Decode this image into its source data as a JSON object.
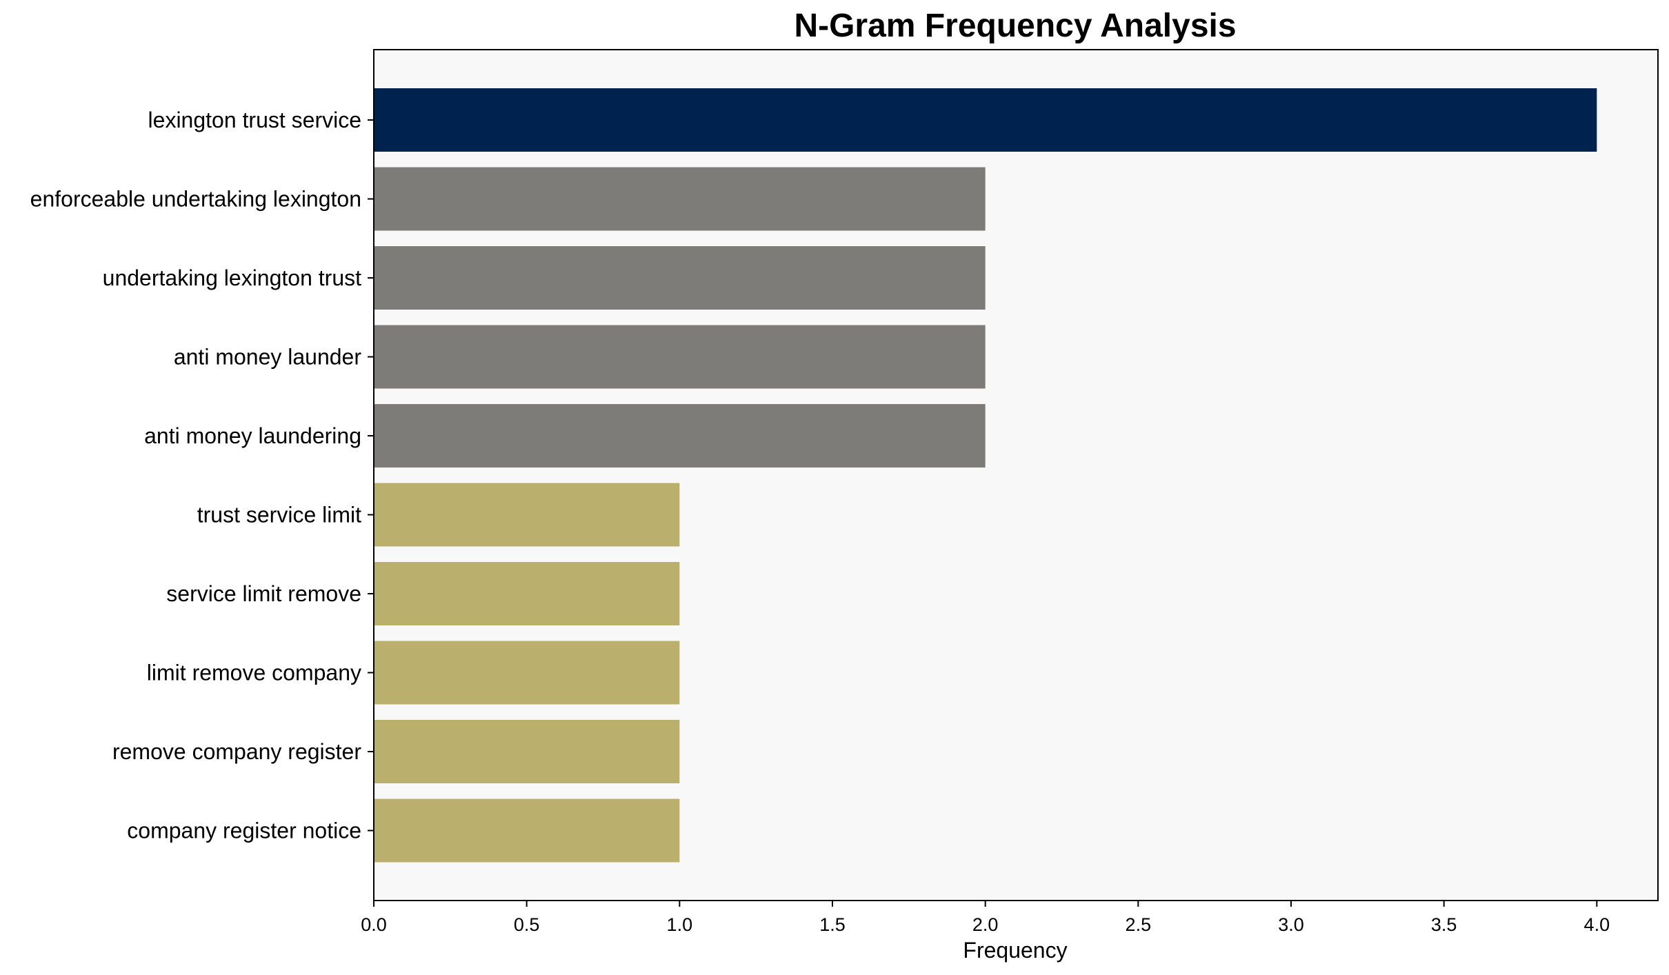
{
  "chart_data": {
    "type": "bar",
    "orientation": "horizontal",
    "title": "N-Gram Frequency Analysis",
    "xlabel": "Frequency",
    "ylabel": "",
    "categories": [
      "lexington trust service",
      "enforceable undertaking lexington",
      "undertaking lexington trust",
      "anti money launder",
      "anti money laundering",
      "trust service limit",
      "service limit remove",
      "limit remove company",
      "remove company register",
      "company register notice"
    ],
    "values": [
      4,
      2,
      2,
      2,
      2,
      1,
      1,
      1,
      1,
      1
    ],
    "bar_colors": [
      "#00224e",
      "#7d7c78",
      "#7d7c78",
      "#7d7c78",
      "#7d7c78",
      "#bbaf6e",
      "#bbaf6e",
      "#bbaf6e",
      "#bbaf6e",
      "#bbaf6e"
    ],
    "xlim": [
      0,
      4.2
    ],
    "xticks": [
      0,
      0.5,
      1,
      1.5,
      2,
      2.5,
      3,
      3.5,
      4
    ],
    "xtick_labels": [
      "0.0",
      "0.5",
      "1.0",
      "1.5",
      "2.0",
      "2.5",
      "3.0",
      "3.5",
      "4.0"
    ],
    "grid": false,
    "legend": "none",
    "plot_background": "#f8f8f8"
  }
}
